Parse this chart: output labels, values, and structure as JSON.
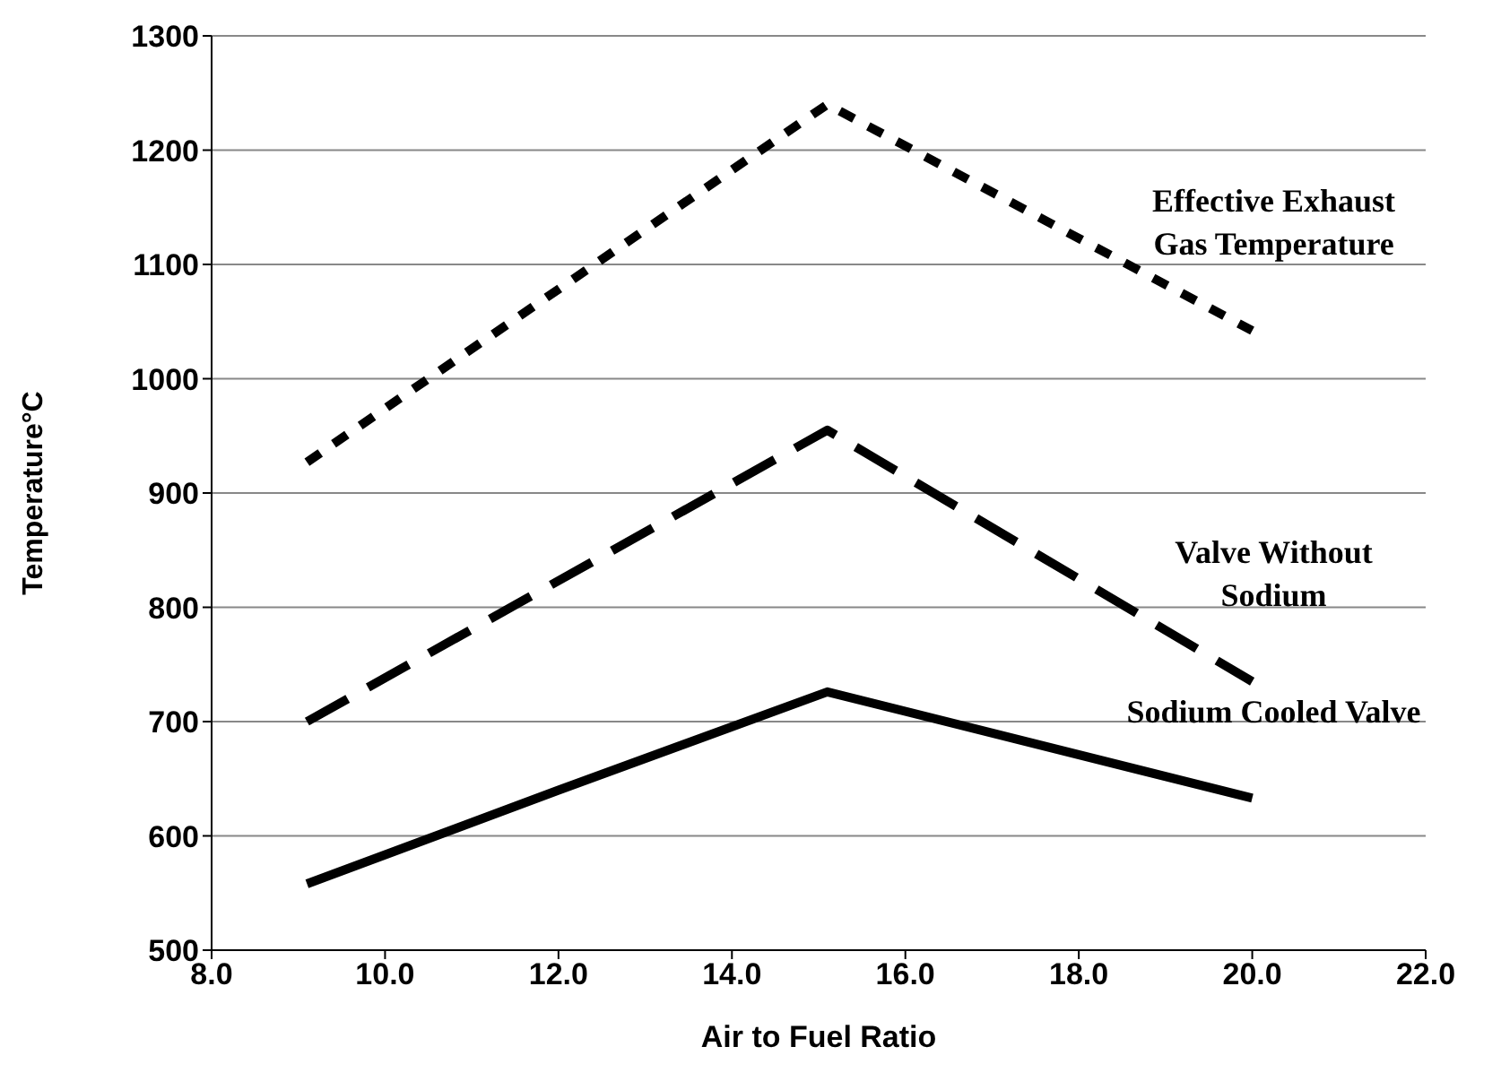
{
  "chart_data": {
    "type": "line",
    "xlabel": "Air to Fuel Ratio",
    "ylabel": "Temperature°C",
    "xlim": [
      8,
      22
    ],
    "xticks": [
      {
        "value": 8,
        "label": "8.0"
      },
      {
        "value": 10,
        "label": "10.0"
      },
      {
        "value": 12,
        "label": "12.0"
      },
      {
        "value": 14,
        "label": "14.0"
      },
      {
        "value": 16,
        "label": "16.0"
      },
      {
        "value": 18,
        "label": "18.0"
      },
      {
        "value": 20,
        "label": "20.0"
      },
      {
        "value": 22,
        "label": "22.0"
      }
    ],
    "ylim": [
      500,
      1300
    ],
    "yticks": [
      500,
      600,
      700,
      800,
      900,
      1000,
      1100,
      1200,
      1300
    ],
    "grid": "y",
    "marker": "none",
    "series": [
      {
        "name": "Effective Exhaust Gas Temperature",
        "color": "#000000",
        "line_style": "dotted",
        "x": [
          9.1,
          15.1,
          20.0
        ],
        "values": [
          927,
          1240,
          1042
        ]
      },
      {
        "name": "Valve Without Sodium",
        "color": "#000000",
        "line_style": "dashed",
        "x": [
          9.1,
          15.1,
          20.0
        ],
        "values": [
          700,
          955,
          735
        ]
      },
      {
        "name": "Sodium Cooled Valve",
        "color": "#000000",
        "line_style": "solid",
        "x": [
          9.1,
          12.0,
          15.1,
          20.0
        ],
        "values": [
          558,
          640,
          726,
          633
        ]
      }
    ]
  }
}
